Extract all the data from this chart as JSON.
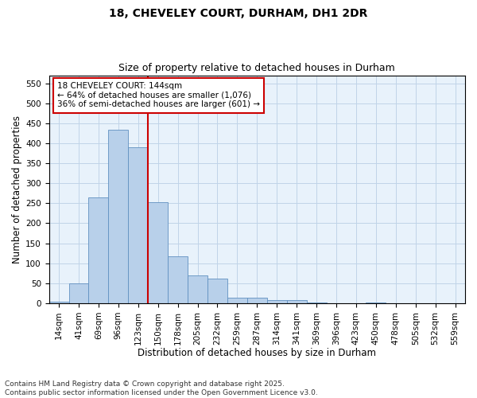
{
  "title1": "18, CHEVELEY COURT, DURHAM, DH1 2DR",
  "title2": "Size of property relative to detached houses in Durham",
  "xlabel": "Distribution of detached houses by size in Durham",
  "ylabel": "Number of detached properties",
  "bar_labels": [
    "14sqm",
    "41sqm",
    "69sqm",
    "96sqm",
    "123sqm",
    "150sqm",
    "178sqm",
    "205sqm",
    "232sqm",
    "259sqm",
    "287sqm",
    "314sqm",
    "341sqm",
    "369sqm",
    "396sqm",
    "423sqm",
    "450sqm",
    "478sqm",
    "505sqm",
    "532sqm",
    "559sqm"
  ],
  "bar_values": [
    3,
    50,
    265,
    433,
    390,
    252,
    118,
    70,
    62,
    14,
    13,
    8,
    7,
    2,
    0,
    0,
    1,
    0,
    0,
    0,
    0
  ],
  "bar_color": "#b8d0ea",
  "bar_edge_color": "#6090c0",
  "vline_color": "#cc0000",
  "annotation_text": "18 CHEVELEY COURT: 144sqm\n← 64% of detached houses are smaller (1,076)\n36% of semi-detached houses are larger (601) →",
  "annotation_box_color": "#ffffff",
  "annotation_box_edge": "#cc0000",
  "ylim": [
    0,
    570
  ],
  "yticks": [
    0,
    50,
    100,
    150,
    200,
    250,
    300,
    350,
    400,
    450,
    500,
    550
  ],
  "footer": "Contains HM Land Registry data © Crown copyright and database right 2025.\nContains public sector information licensed under the Open Government Licence v3.0.",
  "bg_color": "#ffffff",
  "plot_bg_color": "#e8f2fb",
  "grid_color": "#c0d4e8",
  "title_fontsize": 10,
  "subtitle_fontsize": 9,
  "axis_label_fontsize": 8.5,
  "tick_fontsize": 7.5,
  "annotation_fontsize": 7.5,
  "footer_fontsize": 6.5
}
